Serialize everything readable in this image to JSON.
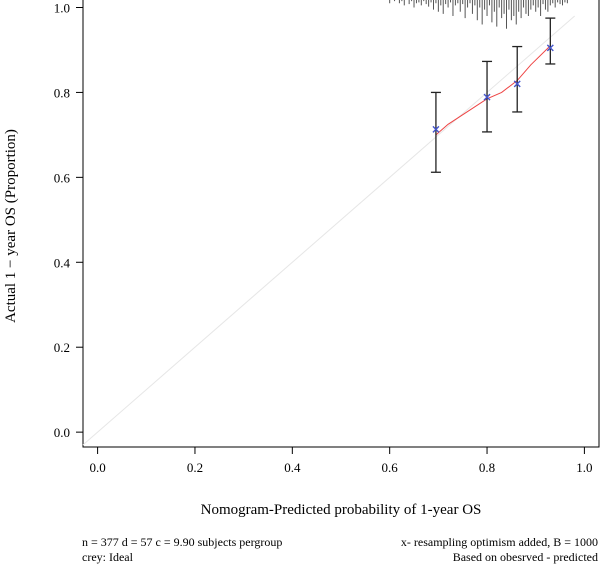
{
  "chart_data": {
    "type": "scatter",
    "xlabel": "Nomogram-Predicted probability of 1-year OS",
    "ylabel": "Actual 1 − year OS (Proportion)",
    "xlim": [
      -0.03,
      1.03
    ],
    "ylim": [
      -0.035,
      1.02
    ],
    "x_ticks": [
      0.0,
      0.2,
      0.4,
      0.6,
      0.8,
      1.0
    ],
    "x_tick_labels": [
      "0.0",
      "0.2",
      "0.4",
      "0.6",
      "0.8",
      "1.0"
    ],
    "y_ticks": [
      0.0,
      0.2,
      0.4,
      0.6,
      0.8,
      1.0
    ],
    "y_tick_labels": [
      "0.0",
      "0.2",
      "0.4",
      "0.6",
      "0.8",
      "1.0"
    ],
    "ideal_line": {
      "x": [
        -0.03,
        0.98
      ],
      "y": [
        -0.03,
        0.98
      ],
      "color": "#e6e6e6"
    },
    "apparent_line": {
      "color": "#ee4444",
      "x": [
        0.695,
        0.72,
        0.76,
        0.8,
        0.83,
        0.862,
        0.89,
        0.93
      ],
      "y": [
        0.7,
        0.725,
        0.755,
        0.785,
        0.8,
        0.828,
        0.865,
        0.91
      ]
    },
    "points": {
      "marker": "x",
      "color": "#4455cc",
      "x": [
        0.695,
        0.8,
        0.862,
        0.93
      ],
      "y": [
        0.713,
        0.789,
        0.82,
        0.905
      ],
      "err_low": [
        0.612,
        0.707,
        0.754,
        0.867
      ],
      "err_high": [
        0.8,
        0.873,
        0.908,
        0.975
      ]
    },
    "rug": {
      "color": "#555555",
      "x": [
        0.6,
        0.61,
        0.62,
        0.625,
        0.63,
        0.64,
        0.645,
        0.65,
        0.655,
        0.66,
        0.665,
        0.67,
        0.675,
        0.68,
        0.685,
        0.69,
        0.695,
        0.7,
        0.705,
        0.71,
        0.715,
        0.72,
        0.725,
        0.73,
        0.735,
        0.74,
        0.745,
        0.75,
        0.755,
        0.76,
        0.765,
        0.77,
        0.775,
        0.78,
        0.785,
        0.79,
        0.795,
        0.8,
        0.805,
        0.81,
        0.815,
        0.82,
        0.825,
        0.83,
        0.835,
        0.84,
        0.845,
        0.85,
        0.855,
        0.86,
        0.865,
        0.87,
        0.875,
        0.88,
        0.885,
        0.89,
        0.895,
        0.9,
        0.905,
        0.91,
        0.915,
        0.92,
        0.925,
        0.93,
        0.935,
        0.94,
        0.945,
        0.95,
        0.955,
        0.96,
        0.965
      ],
      "h": [
        0.01,
        0.005,
        0.01,
        0.005,
        0.015,
        0.012,
        0.005,
        0.02,
        0.01,
        0.008,
        0.015,
        0.005,
        0.012,
        0.018,
        0.008,
        0.025,
        0.01,
        0.03,
        0.015,
        0.035,
        0.012,
        0.02,
        0.008,
        0.04,
        0.015,
        0.01,
        0.03,
        0.012,
        0.045,
        0.02,
        0.01,
        0.035,
        0.015,
        0.05,
        0.02,
        0.06,
        0.025,
        0.04,
        0.015,
        0.055,
        0.03,
        0.065,
        0.02,
        0.045,
        0.035,
        0.07,
        0.025,
        0.05,
        0.04,
        0.06,
        0.03,
        0.045,
        0.02,
        0.035,
        0.04,
        0.025,
        0.015,
        0.03,
        0.02,
        0.04,
        0.012,
        0.025,
        0.03,
        0.015,
        0.01,
        0.02,
        0.008,
        0.012,
        0.015,
        0.008,
        0.01
      ]
    }
  },
  "footer": {
    "left_line1": "n = 377 d = 57 c = 9.90 subjects pergroup",
    "left_line2": "crey: Ideal",
    "right_line1": "x- resampling optimism added, B = 1000",
    "right_line2": "Based on obesrved - predicted"
  }
}
